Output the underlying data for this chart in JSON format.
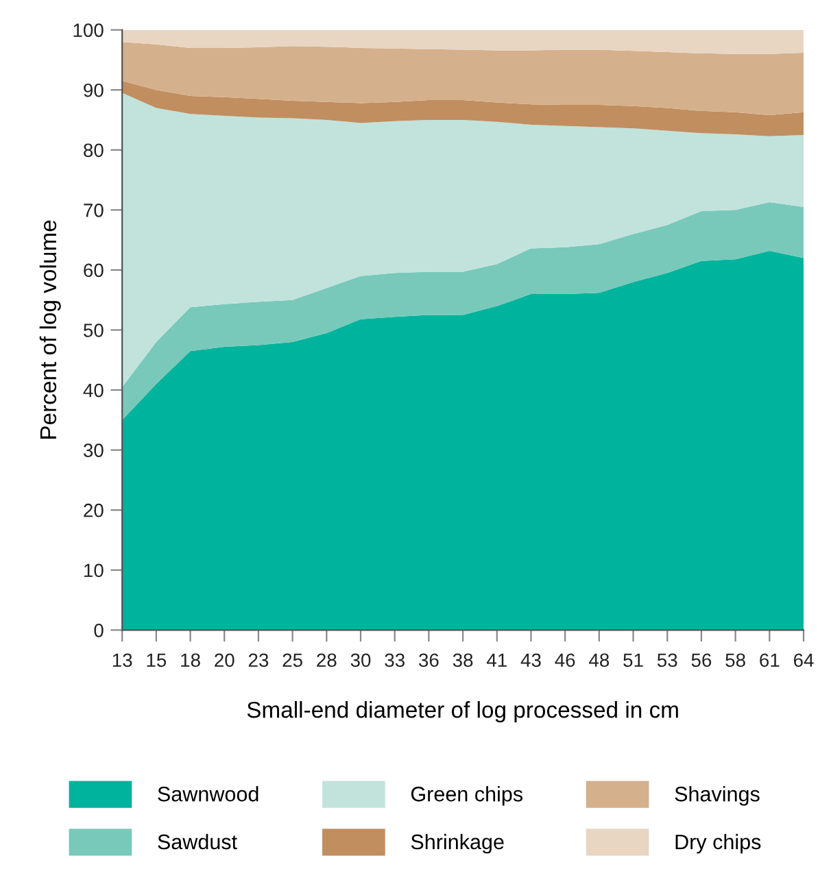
{
  "chart_data": {
    "type": "area",
    "stacked": true,
    "xlabel": "Small-end diameter of log processed in cm",
    "ylabel": "Percent of log volume",
    "categories": [
      "13",
      "15",
      "18",
      "20",
      "23",
      "25",
      "28",
      "30",
      "33",
      "36",
      "38",
      "41",
      "43",
      "46",
      "48",
      "51",
      "53",
      "56",
      "58",
      "61",
      "64"
    ],
    "ylim": [
      0,
      100
    ],
    "yticks": [
      0,
      10,
      20,
      30,
      40,
      50,
      60,
      70,
      80,
      90,
      100
    ],
    "grid": false,
    "legend": "bottom",
    "series": [
      {
        "name": "Sawnwood",
        "color": "#00b39c",
        "values": [
          35,
          41,
          46.5,
          47.2,
          47.5,
          48,
          49.5,
          51.8,
          52.2,
          52.5,
          52.5,
          54,
          56,
          56,
          56.2,
          58,
          59.5,
          61.5,
          61.8,
          63.2,
          62
        ]
      },
      {
        "name": "Sawdust",
        "color": "#78c9ba",
        "values": [
          5.5,
          7,
          7.3,
          7.1,
          7.2,
          7,
          7.5,
          7.2,
          7.3,
          7.2,
          7.2,
          7,
          7.6,
          7.8,
          8.1,
          8,
          8,
          8.3,
          8.2,
          8.1,
          8.5
        ]
      },
      {
        "name": "Green chips",
        "color": "#c1e3dc",
        "values": [
          49,
          39,
          32.2,
          31.4,
          30.7,
          30.3,
          28,
          25.5,
          25.3,
          25.3,
          25.3,
          23.7,
          20.6,
          20.2,
          19.5,
          17.6,
          15.7,
          13,
          12.6,
          11,
          12
        ]
      },
      {
        "name": "Shrinkage",
        "color": "#c18e60",
        "values": [
          2,
          3,
          3,
          3.1,
          3.1,
          2.9,
          3,
          3.3,
          3.2,
          3.3,
          3.3,
          3.2,
          3.4,
          3.5,
          3.7,
          3.7,
          3.8,
          3.7,
          3.7,
          3.5,
          3.8
        ]
      },
      {
        "name": "Shavings",
        "color": "#d5b08c",
        "values": [
          6.5,
          7.6,
          8,
          8.2,
          8.6,
          9.1,
          9.2,
          9.2,
          8.9,
          8.5,
          8.4,
          8.7,
          9,
          9.2,
          9.2,
          9.2,
          9.3,
          9.6,
          9.7,
          10.2,
          9.9
        ]
      },
      {
        "name": "Dry chips",
        "color": "#e8d5c2",
        "values": [
          2,
          2.4,
          3,
          3,
          2.9,
          2.7,
          2.8,
          3,
          3.1,
          3.2,
          3.3,
          3.4,
          3.4,
          3.3,
          3.3,
          3.5,
          3.7,
          3.9,
          4,
          4,
          3.8
        ]
      }
    ]
  }
}
